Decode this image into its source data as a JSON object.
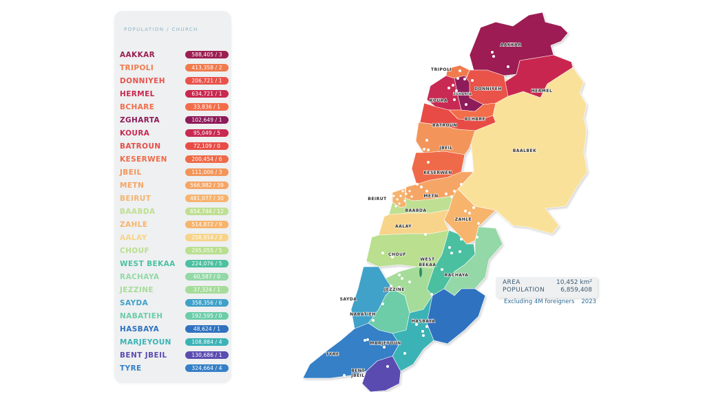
{
  "legend": {
    "title": "POPULATION / CHURCH",
    "items": [
      {
        "name": "AAKKAR",
        "value": "588,405 / 3",
        "population": 588405,
        "churches": 3,
        "color": "#9c1f52"
      },
      {
        "name": "TRIPOLI",
        "value": "413,358 / 2",
        "population": 413358,
        "churches": 2,
        "color": "#f07b4d"
      },
      {
        "name": "DONNIYEH",
        "value": "206,721 / 1",
        "population": 206721,
        "churches": 1,
        "color": "#e9524a"
      },
      {
        "name": "HERMEL",
        "value": "634,721 / 1",
        "population": 634721,
        "churches": 1,
        "color": "#c9284f"
      },
      {
        "name": "BCHARE",
        "value": "33,836 / 1",
        "population": 33836,
        "churches": 1,
        "color": "#f26d4a"
      },
      {
        "name": "ZGHARTA",
        "value": "102,649 / 1",
        "population": 102649,
        "churches": 1,
        "color": "#8e1b5a"
      },
      {
        "name": "KOURA",
        "value": "95,049 / 5",
        "population": 95049,
        "churches": 5,
        "color": "#c82a52"
      },
      {
        "name": "BATROUN",
        "value": "72,109 / 0",
        "population": 72109,
        "churches": 0,
        "color": "#e84c45"
      },
      {
        "name": "KESERWEN",
        "value": "200,454 / 6",
        "population": 200454,
        "churches": 6,
        "color": "#ef6a48"
      },
      {
        "name": "JBEIL",
        "value": "111,006 / 3",
        "population": 111006,
        "churches": 3,
        "color": "#f3955a"
      },
      {
        "name": "METN",
        "value": "566,982 / 39",
        "population": 566982,
        "churches": 39,
        "color": "#f5a565"
      },
      {
        "name": "BEIRUT",
        "value": "481,077 / 30",
        "population": 481077,
        "churches": 30,
        "color": "#f6b36e"
      },
      {
        "name": "BAABDA",
        "value": "654,744 / 12",
        "population": 654744,
        "churches": 12,
        "color": "#bfdf92"
      },
      {
        "name": "ZAHLE",
        "value": "514,872 / 9",
        "population": 514872,
        "churches": 9,
        "color": "#f7b46c"
      },
      {
        "name": "AALAY",
        "value": "258,914 / 3",
        "population": 258914,
        "churches": 3,
        "color": "#f7d48a"
      },
      {
        "name": "CHOUF",
        "value": "295,055 / 5",
        "population": 295055,
        "churches": 5,
        "color": "#b9df8f"
      },
      {
        "name": "WEST BEKAA",
        "value": "224,076 / 5",
        "population": 224076,
        "churches": 5,
        "color": "#4cc0a0"
      },
      {
        "name": "RACHAYA",
        "value": "60,587 / 0",
        "population": 60587,
        "churches": 0,
        "color": "#93d8a6"
      },
      {
        "name": "JEZZINE",
        "value": "37,324 / 1",
        "population": 37324,
        "churches": 1,
        "color": "#a6dc9a"
      },
      {
        "name": "SAYDA",
        "value": "358,356 / 6",
        "population": 358356,
        "churches": 6,
        "color": "#3fa1c9"
      },
      {
        "name": "NABATIEH",
        "value": "192,595 / 0",
        "population": 192595,
        "churches": 0,
        "color": "#6ccda8"
      },
      {
        "name": "HASBAYA",
        "value": "48,624 / 1",
        "population": 48624,
        "churches": 1,
        "color": "#2f72c0"
      },
      {
        "name": "MARJEYOUN",
        "value": "108,884 / 4",
        "population": 108884,
        "churches": 4,
        "color": "#3bb3b6"
      },
      {
        "name": "BENT JBEIL",
        "value": "130,686 / 1",
        "population": 130686,
        "churches": 1,
        "color": "#5a4cb0"
      },
      {
        "name": "TYRE",
        "value": "324,664 / 4",
        "population": 324664,
        "churches": 4,
        "color": "#3580c7"
      }
    ]
  },
  "map": {
    "labels": {
      "aakkar": "AAKKAR",
      "tripoli": "TRIPOLI",
      "zgharta": "ZGHARTA",
      "donniyeh": "DONNIYEH",
      "hermel": "HERMEL",
      "koura": "KOURA",
      "bchare": "BCHARE",
      "batroun": "BATROUN",
      "jbeil": "JBEIL",
      "baalbek": "BAALBEK",
      "keserwen": "KESERWEN",
      "beirut": "BEIRUT",
      "metn": "METN",
      "baabda": "BAABDA",
      "aalay": "AALAY",
      "zahle": "ZAHLE",
      "chouf": "CHOUF",
      "west_bekaa_1": "WEST",
      "west_bekaa_2": "BEKAA",
      "rachaya": "RACHAYA",
      "jezzine": "JEZZINE",
      "sayda": "SAYDA",
      "nabatieh": "NABATIEH",
      "hasbaya": "HASBAYA",
      "marjeyoun": "MARJEYOUN",
      "tyre": "TYRE",
      "bent_jbeil_1": "BENT",
      "bent_jbeil_2": "JBEIL"
    },
    "colors": {
      "baalbek": "#f9e19a"
    }
  },
  "stats": {
    "area_label": "AREA",
    "area_value": "10,452 km²",
    "population_label": "POPULATION",
    "population_value": "6,859,408",
    "note": "Excluding 4M foreigners",
    "year": "2023"
  }
}
